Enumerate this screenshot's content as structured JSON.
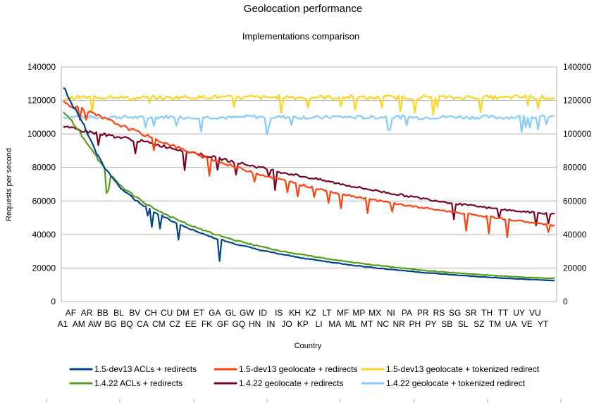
{
  "chart_data": {
    "type": "line",
    "title": "Geolocation performance",
    "subtitle": "Implementations comparison",
    "xlabel": "Country",
    "ylabel": "Requests per second",
    "ylim": [
      0,
      140000
    ],
    "y_ticks": [
      0,
      20000,
      40000,
      60000,
      80000,
      100000,
      120000,
      140000
    ],
    "y2_ticks": [
      0,
      20000,
      40000,
      60000,
      80000,
      100000,
      120000,
      140000
    ],
    "grid": "horizontal",
    "legend_position": "bottom",
    "point_count": 240,
    "x_labels_row1": [
      "AF",
      "AR",
      "BB",
      "BL",
      "BV",
      "CH",
      "CU",
      "DM",
      "ET",
      "GA",
      "GL",
      "GW",
      "ID",
      "IS",
      "KH",
      "KZ",
      "LT",
      "MF",
      "MP",
      "MX",
      "NI",
      "PA",
      "PR",
      "RS",
      "SG",
      "SR",
      "TH",
      "TT",
      "UY",
      "VU"
    ],
    "x_labels_row2": [
      "A1",
      "AM",
      "AW",
      "BG",
      "BQ",
      "CA",
      "CM",
      "CZ",
      "EE",
      "FK",
      "GF",
      "GQ",
      "HN",
      "IN",
      "JO",
      "KP",
      "LI",
      "MA",
      "ML",
      "MT",
      "NC",
      "NR",
      "PH",
      "PY",
      "SB",
      "SL",
      "SZ",
      "TM",
      "UA",
      "VE",
      "YT"
    ],
    "series": [
      {
        "name": "1.5-dev13 ACLs + redirects",
        "color": "#004586",
        "values": [
          127500,
          124000,
          119000,
          116000,
          112000,
          108000,
          104000,
          99000,
          95000,
          90000,
          86000,
          82000,
          79000,
          76000,
          73000,
          70500,
          68500,
          66500,
          64500,
          62800,
          61200,
          59800,
          58400,
          57000,
          55700,
          54400,
          53200,
          52000,
          50900,
          49800,
          48700,
          47700,
          46700,
          45700,
          44800,
          43900,
          43100,
          42300,
          41500,
          40700,
          40000,
          39300,
          38600,
          37900,
          37200,
          36600,
          36000,
          35400,
          34800,
          34200,
          33600,
          33100,
          32600,
          32100,
          31600,
          31100,
          30600,
          30200,
          29700,
          29300,
          28900,
          28500,
          28100,
          27700,
          27300,
          26900,
          26600,
          26200,
          25900,
          25500,
          25200,
          24900,
          24600,
          24300,
          24000,
          23700,
          23400,
          23100,
          22800,
          22500,
          22200,
          22000,
          21700,
          21400,
          21200,
          20900,
          20700,
          20400,
          20200,
          20000,
          19700,
          19500,
          19300,
          19100,
          18900,
          18700,
          18500,
          18300,
          18100,
          17900,
          17700,
          17500,
          17300,
          17100,
          17000,
          16800,
          16600,
          16500,
          16300,
          16100,
          16000,
          15800,
          15700,
          15500,
          15400,
          15200,
          15100,
          14900,
          14800,
          14700,
          14500,
          14400,
          14300,
          14200,
          14000,
          13900,
          13800,
          13700,
          13600,
          13500,
          13400,
          13300,
          13200,
          13100,
          13000,
          12900,
          12800,
          12700,
          12600,
          12500
        ]
      },
      {
        "name": "1.5-dev13 geolocate + redirects",
        "color": "#ff420e",
        "values": [
          119000,
          117500,
          116000,
          114500,
          113000,
          111500,
          110000,
          108500,
          107000,
          105500,
          104000,
          102500,
          101000,
          99500,
          98000,
          96600,
          95200,
          93800,
          92400,
          91000,
          89700,
          88400,
          87100,
          85800,
          84600,
          83400,
          82200,
          81000,
          79900,
          78800,
          77700,
          76600,
          75600,
          74600,
          73600,
          72600,
          71700,
          70800,
          69900,
          69000,
          68100,
          67300,
          66500,
          65700,
          64900,
          64100,
          63400,
          62700,
          62000,
          61300,
          60600,
          59900,
          59300,
          58700,
          58100,
          57500,
          56900,
          56300,
          55800,
          55300,
          54800,
          54300,
          53800,
          53300,
          52800,
          52300,
          51800,
          51300,
          50800,
          50300,
          49800,
          49300,
          48800,
          48300,
          47800,
          47300,
          46800,
          46300,
          45800,
          45300
        ]
      },
      {
        "name": "1.5-dev13 geolocate + tokenized redirect",
        "color": "#ffd320",
        "values": [
          121000,
          122000,
          121500,
          122500,
          121000,
          122000,
          121500,
          122000,
          121800,
          122200,
          121500,
          122000,
          121700,
          122300,
          121600,
          122000,
          121800,
          122100,
          121400,
          121900,
          122000,
          121700,
          122200,
          121500,
          122000,
          121800,
          121600,
          122100,
          121900,
          121500
        ]
      },
      {
        "name": "1.4.22 ACLs + redirects",
        "color": "#579d1c",
        "values": [
          113000,
          110000,
          107000,
          103500,
          99500,
          95500,
          91500,
          87500,
          83500,
          80000,
          76500,
          73500,
          71000,
          68500,
          66300,
          64300,
          62400,
          60600,
          58900,
          57300,
          55800,
          54300,
          52900,
          51600,
          50300,
          49100,
          47900,
          46700,
          45600,
          44600,
          43600,
          42600,
          41700,
          40800,
          39900,
          39100,
          38300,
          37500,
          36700,
          36000,
          35300,
          34600,
          33900,
          33300,
          32700,
          32100,
          31500,
          30900,
          30400,
          29900,
          29400,
          28900,
          28400,
          27900,
          27500,
          27000,
          26600,
          26200,
          25800,
          25400,
          25000,
          24600,
          24200,
          23800,
          23500,
          23100,
          22800,
          22400,
          22100,
          21800,
          21500,
          21200,
          20900,
          20600,
          20300,
          20000,
          19700,
          19400,
          19200,
          18900,
          18700,
          18400,
          18200,
          17900,
          17700,
          17500,
          17300,
          17100,
          16900,
          16700,
          16500,
          16300,
          16100,
          15900,
          15800,
          15600,
          15400,
          15300,
          15100,
          15000,
          14800,
          14700,
          14500,
          14400,
          14300,
          14200,
          14100,
          14000,
          13900,
          13800
        ]
      },
      {
        "name": "1.4.22 geolocate + redirects",
        "color": "#7e0021",
        "values": [
          104000,
          103200,
          102400,
          101600,
          100800,
          100000,
          99200,
          98400,
          97600,
          96800,
          96000,
          95000,
          94000,
          93000,
          92000,
          91000,
          90000,
          89000,
          88000,
          87000,
          86000,
          85000,
          84000,
          83000,
          82000,
          81000,
          80000,
          79000,
          78000,
          77100,
          76200,
          75300,
          74400,
          73500,
          72600,
          71700,
          70800,
          69900,
          69000,
          68100,
          67300,
          66500,
          65700,
          64900,
          64100,
          63300,
          62600,
          61900,
          61200,
          60500,
          59800,
          59100,
          58400,
          57800,
          57200,
          56600,
          56000,
          55500,
          55000,
          54500,
          54000,
          53600,
          53200,
          52800,
          52500,
          52200
        ]
      },
      {
        "name": "1.4.22 geolocate + tokenized redirect",
        "color": "#83caff",
        "values": [
          110000,
          110500,
          109800,
          110200,
          110000,
          109500,
          110300,
          109900,
          110100,
          110000,
          109700,
          110400,
          109900,
          110200,
          110000,
          109600,
          110300,
          110000,
          109800,
          110200,
          110100,
          109700,
          110000,
          110300,
          109900,
          110100,
          109800,
          110200,
          110000,
          110100
        ]
      }
    ]
  }
}
